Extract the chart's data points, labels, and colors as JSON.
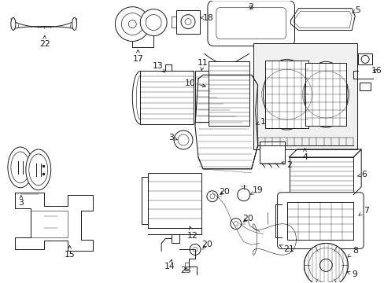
{
  "bg_color": "#ffffff",
  "line_color": "#1a1a1a",
  "text_color": "#111111",
  "fig_width": 4.89,
  "fig_height": 3.6,
  "dpi": 100
}
